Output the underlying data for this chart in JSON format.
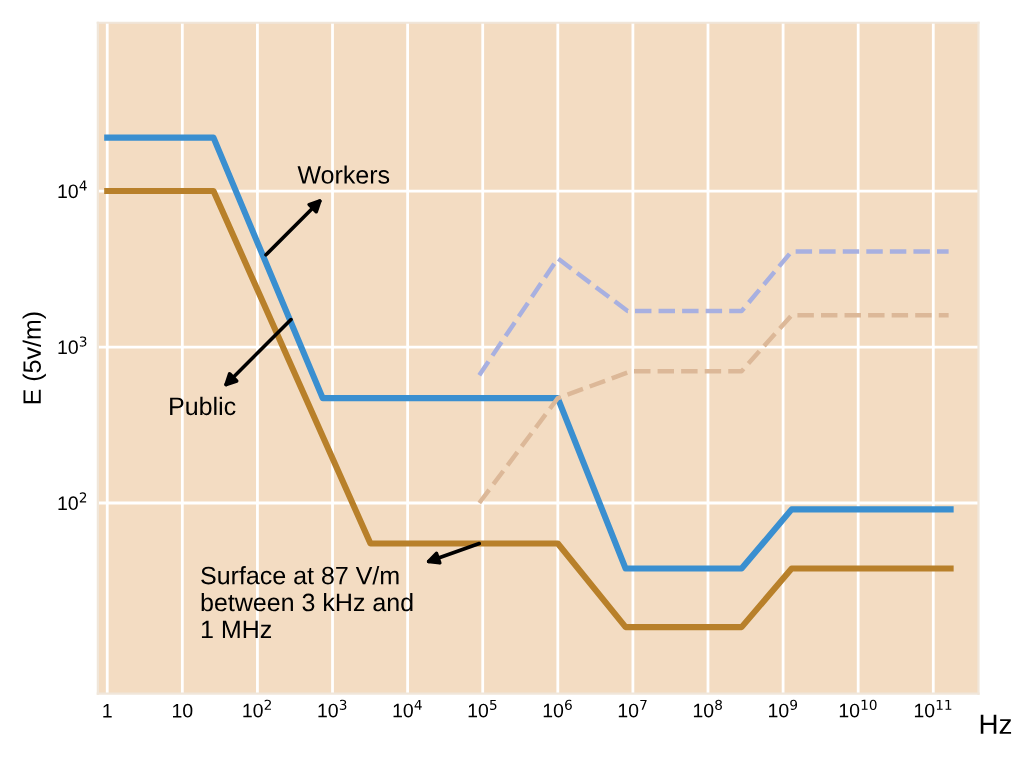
{
  "chart_data": {
    "type": "line",
    "xlabel": "Hz",
    "ylabel": "E (5v/m)",
    "log": "xy",
    "xlim": [
      0.75,
      400000000000
    ],
    "ylim": [
      6,
      120000
    ],
    "xticks": [
      1,
      10,
      {
        "value": 100,
        "label": "10$^{2}$"
      },
      {
        "value": 1000,
        "label": "10$^{3}$"
      },
      {
        "value": 10000,
        "label": "10$^{4}$"
      },
      {
        "value": 100000,
        "label": "10$^{5}$"
      },
      {
        "value": 1000000,
        "label": "10$^{6}$"
      },
      {
        "value": 10000000,
        "label": "10$^{7}$"
      },
      {
        "value": 100000000,
        "label": "10$^{8}$"
      },
      {
        "value": 1000000000,
        "label": "10$^{9}$"
      },
      {
        "value": 10000000000,
        "label": "10$^{10}$"
      },
      {
        "value": 100000000000,
        "label": "10$^{11}$"
      }
    ],
    "yticks": [
      {
        "value": 100,
        "label": "10$^{2}$"
      },
      {
        "value": 1000,
        "label": "10$^{3}$"
      },
      {
        "value": 10000,
        "label": "10$^{4}$"
      }
    ],
    "grid": true,
    "series": [
      {
        "color": "#3a8fd0",
        "line_style": "solid",
        "x": [
          1,
          26,
          740,
          1000000,
          8000000,
          280000000,
          1300000000,
          170000000000
        ],
        "values": [
          22000,
          22000,
          470,
          470,
          38,
          38,
          91,
          91
        ]
      },
      {
        "color": "#b8802a",
        "line_style": "solid",
        "x": [
          1,
          26,
          3200,
          1000000,
          8000000,
          280000000,
          1300000000,
          170000000000
        ],
        "values": [
          10000,
          10000,
          55,
          55,
          16,
          16,
          38,
          38
        ]
      },
      {
        "color": "#a8b0e0",
        "line_style": "dashed",
        "x": [
          90000,
          1000000,
          8500000,
          280000000,
          1300000000,
          160000000000
        ],
        "values": [
          660,
          3700,
          1700,
          1700,
          4100,
          4100
        ]
      },
      {
        "color": "#dcb898",
        "line_style": "dashed",
        "x": [
          90000,
          1000000,
          9500000,
          280000000,
          1300000000,
          160000000000
        ],
        "values": [
          100,
          470,
          700,
          700,
          1600,
          1600
        ]
      }
    ],
    "annotations": [
      {
        "text": "Workers",
        "x": 130,
        "y": 3900
      },
      {
        "text": "Public",
        "x": 280,
        "y": 1500
      },
      {
        "text": "Surface at 87 V/m\nbetween 3 kHz and\n1 MHz",
        "x": 90000,
        "y": 55
      }
    ]
  }
}
